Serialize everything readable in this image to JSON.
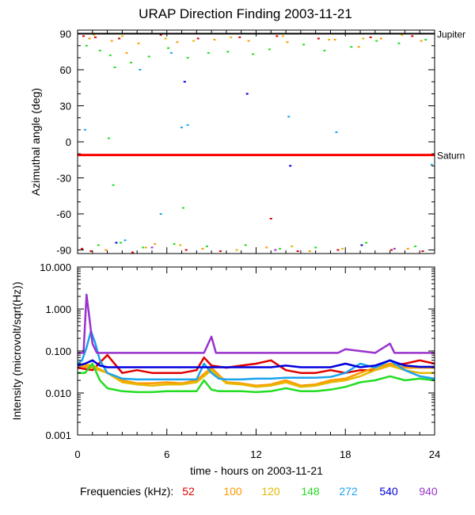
{
  "chart_data": {
    "title": "URAP Direction Finding  2003-11-21",
    "xlabel": "time - hours on 2003-11-21",
    "x_ticks": [
      "0",
      "6",
      "12",
      "18",
      "24"
    ],
    "xlim": [
      0,
      24
    ],
    "legend_title": "Frequencies (kHz):",
    "frequencies": [
      {
        "label": "52",
        "color": "#e00000"
      },
      {
        "label": "100",
        "color": "#ff9900"
      },
      {
        "label": "120",
        "color": "#e6b800"
      },
      {
        "label": "148",
        "color": "#22dd22"
      },
      {
        "label": "272",
        "color": "#1aa3ee"
      },
      {
        "label": "540",
        "color": "#0000dd"
      },
      {
        "label": "940",
        "color": "#9933cc"
      }
    ],
    "panels": [
      {
        "type": "scatter",
        "ylabel": "Azimuthal angle (deg)",
        "ylim": [
          -93,
          93
        ],
        "y_ticks": [
          "90",
          "60",
          "30",
          "0",
          "-30",
          "-60",
          "-90"
        ],
        "reference_lines": [
          {
            "label": "Jupiter",
            "y": 90,
            "color": "#000000"
          },
          {
            "label": "Saturn",
            "y": -11,
            "color": "#ff0000"
          }
        ],
        "series": [
          {
            "name": "52",
            "x": [
              0.4,
              1.2,
              2.8,
              5.6,
              8.1,
              10.9,
              13.4,
              16.2,
              19.7,
              22.5,
              0.9,
              7.3,
              14.8,
              21.1,
              0.3,
              3.7,
              9.6,
              17.5,
              23.2,
              13.0
            ],
            "y": [
              88,
              87,
              86,
              89,
              86,
              87,
              88,
              86,
              87,
              88,
              -91,
              -90,
              -91,
              -90,
              -89,
              -92,
              -91,
              -90,
              -91,
              -64
            ]
          },
          {
            "name": "100",
            "x": [
              0.8,
              2.3,
              4.1,
              6.7,
              9.2,
              11.5,
              14.1,
              17.3,
              20.4,
              23.1,
              1.9,
              8.4,
              15.6,
              22.2,
              5.2,
              12.7,
              3.3,
              18.9
            ],
            "y": [
              86,
              84,
              82,
              83,
              85,
              84,
              83,
              85,
              86,
              84,
              -90,
              -89,
              -91,
              -89,
              -85,
              -88,
              74,
              79
            ]
          },
          {
            "name": "120",
            "x": [
              1.1,
              3.0,
              5.9,
              7.8,
              10.3,
              13.8,
              16.9,
              19.2,
              21.8,
              4.6,
              10.7,
              17.8,
              6.9,
              14.4
            ],
            "y": [
              89,
              88,
              86,
              84,
              87,
              88,
              85,
              86,
              89,
              -88,
              -90,
              -89,
              -86,
              -87
            ]
          },
          {
            "name": "148",
            "x": [
              0.6,
              1.5,
              2.2,
              2.5,
              3.6,
              4.8,
              6.1,
              7.4,
              8.8,
              10.1,
              11.8,
              12.9,
              15.2,
              16.6,
              18.4,
              20.1,
              21.6,
              23.4,
              1.4,
              2.9,
              4.4,
              6.5,
              8.7,
              11.3,
              13.6,
              16.0,
              19.4,
              22.7,
              7.1,
              2.1,
              2.4
            ],
            "y": [
              80,
              76,
              72,
              62,
              66,
              71,
              78,
              70,
              74,
              75,
              73,
              77,
              81,
              76,
              79,
              84,
              82,
              85,
              -86,
              -84,
              -88,
              -85,
              -87,
              -86,
              -89,
              -88,
              -84,
              -87,
              -55,
              3,
              -36
            ]
          },
          {
            "name": "272",
            "x": [
              0.5,
              4.2,
              7.0,
              7.4,
              14.2,
              17.4,
              23.8,
              5.6,
              3.2,
              6.3
            ],
            "y": [
              10,
              60,
              12,
              14,
              21,
              8,
              -19,
              -60,
              -82,
              74
            ]
          },
          {
            "name": "540",
            "x": [
              7.2,
              14.3,
              19.1,
              2.6,
              11.4
            ],
            "y": [
              50,
              -20,
              -86,
              -84,
              40
            ]
          },
          {
            "name": "940",
            "x": [
              5.0,
              13.3,
              21.3
            ],
            "y": [
              -88,
              -90,
              -89
            ]
          }
        ]
      },
      {
        "type": "line",
        "ylabel": "Intensity (microvolt/sqrt(Hz))",
        "yscale": "log",
        "ylim": [
          0.001,
          10
        ],
        "y_ticks": [
          "10.000",
          "1.000",
          "0.100",
          "0.010",
          "0.001"
        ],
        "series": [
          {
            "name": "52",
            "x": [
              0,
              1,
              2,
              3,
              4,
              5,
              6,
              7,
              8,
              8.5,
              9,
              10,
              11,
              12,
              13,
              14,
              15,
              16,
              17,
              18,
              19,
              20,
              21,
              22,
              23,
              24
            ],
            "y": [
              0.04,
              0.035,
              0.08,
              0.03,
              0.035,
              0.03,
              0.03,
              0.03,
              0.035,
              0.07,
              0.045,
              0.04,
              0.045,
              0.05,
              0.06,
              0.035,
              0.03,
              0.03,
              0.035,
              0.03,
              0.035,
              0.035,
              0.045,
              0.05,
              0.06,
              0.05
            ]
          },
          {
            "name": "100",
            "x": [
              0,
              1,
              2,
              3,
              4,
              5,
              6,
              7,
              8,
              9,
              10,
              11,
              12,
              13,
              14,
              15,
              16,
              17,
              18,
              19,
              20,
              21,
              22,
              23,
              24
            ],
            "y": [
              0.045,
              0.04,
              0.03,
              0.02,
              0.017,
              0.017,
              0.018,
              0.017,
              0.02,
              0.04,
              0.018,
              0.017,
              0.015,
              0.016,
              0.02,
              0.015,
              0.016,
              0.02,
              0.022,
              0.03,
              0.04,
              0.05,
              0.04,
              0.04,
              0.04
            ]
          },
          {
            "name": "120",
            "x": [
              0,
              1,
              2,
              3,
              4,
              5,
              6,
              7,
              8,
              9,
              10,
              11,
              12,
              13,
              14,
              15,
              16,
              17,
              18,
              19,
              20,
              21,
              22,
              23,
              24
            ],
            "y": [
              0.05,
              0.045,
              0.03,
              0.018,
              0.016,
              0.015,
              0.016,
              0.016,
              0.018,
              0.035,
              0.017,
              0.016,
              0.014,
              0.015,
              0.018,
              0.014,
              0.015,
              0.018,
              0.02,
              0.025,
              0.035,
              0.045,
              0.035,
              0.03,
              0.03
            ]
          },
          {
            "name": "148",
            "x": [
              0,
              0.5,
              1,
              1.5,
              2,
              3,
              4,
              5,
              6,
              7,
              8,
              8.5,
              9,
              9.5,
              10,
              11,
              12,
              13,
              14,
              15,
              16,
              17,
              18,
              19,
              20,
              21,
              22,
              23,
              24
            ],
            "y": [
              0.03,
              0.03,
              0.05,
              0.02,
              0.013,
              0.011,
              0.0105,
              0.0105,
              0.011,
              0.011,
              0.011,
              0.02,
              0.012,
              0.011,
              0.011,
              0.011,
              0.0105,
              0.011,
              0.013,
              0.011,
              0.011,
              0.012,
              0.014,
              0.018,
              0.02,
              0.025,
              0.02,
              0.022,
              0.02
            ]
          },
          {
            "name": "272",
            "x": [
              0,
              0.3,
              0.6,
              0.9,
              1.2,
              1.5,
              2,
              3,
              4,
              5,
              6,
              7,
              8,
              8.5,
              9,
              9.5,
              10,
              11,
              12,
              13,
              14,
              15,
              16,
              17,
              18,
              19,
              20,
              21,
              22,
              23,
              24
            ],
            "y": [
              0.05,
              0.06,
              0.12,
              0.3,
              0.15,
              0.06,
              0.03,
              0.022,
              0.021,
              0.021,
              0.021,
              0.021,
              0.021,
              0.05,
              0.03,
              0.022,
              0.021,
              0.021,
              0.022,
              0.022,
              0.023,
              0.023,
              0.023,
              0.024,
              0.03,
              0.05,
              0.04,
              0.06,
              0.035,
              0.025,
              0.022
            ]
          },
          {
            "name": "540",
            "x": [
              0,
              0.5,
              1,
              1.5,
              2,
              3,
              4,
              5,
              6,
              7,
              8,
              9,
              10,
              11,
              12,
              13,
              14,
              15,
              16,
              17,
              18,
              19,
              20,
              21,
              22,
              23,
              24
            ],
            "y": [
              0.045,
              0.05,
              0.06,
              0.045,
              0.041,
              0.041,
              0.041,
              0.041,
              0.041,
              0.041,
              0.041,
              0.041,
              0.041,
              0.041,
              0.041,
              0.041,
              0.045,
              0.041,
              0.041,
              0.041,
              0.05,
              0.041,
              0.045,
              0.06,
              0.045,
              0.042,
              0.042
            ]
          },
          {
            "name": "940",
            "x": [
              0,
              0.4,
              0.6,
              0.8,
              1,
              1.3,
              2,
              4,
              6,
              8.5,
              9,
              9.3,
              10,
              12,
              14,
              16,
              17.5,
              18,
              20,
              21,
              21.3,
              22,
              24
            ],
            "y": [
              0.09,
              0.09,
              2.2,
              0.6,
              0.15,
              0.09,
              0.09,
              0.09,
              0.09,
              0.09,
              0.22,
              0.09,
              0.09,
              0.09,
              0.09,
              0.09,
              0.09,
              0.11,
              0.09,
              0.15,
              0.09,
              0.09,
              0.09
            ]
          }
        ]
      }
    ]
  }
}
